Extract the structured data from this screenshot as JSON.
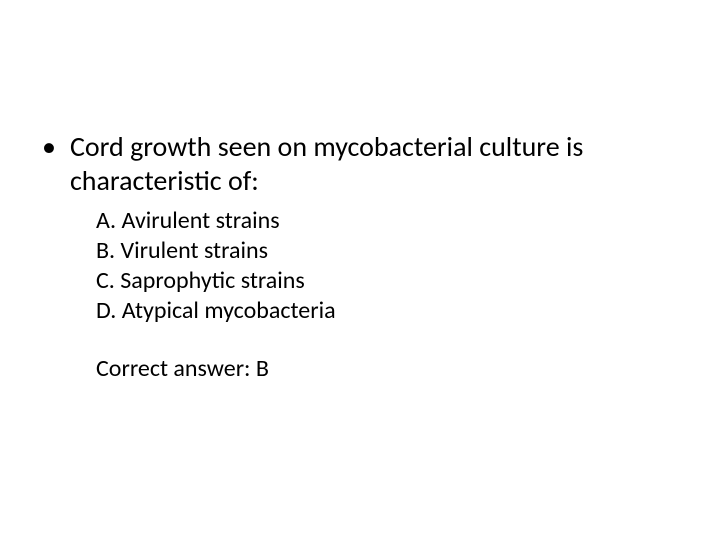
{
  "slide": {
    "background_color": "#ffffff",
    "text_color": "#000000",
    "bullet_char": "•",
    "question": "Cord growth seen on mycobacterial culture is characteristic of:",
    "question_fontsize": 28,
    "options": [
      "A. Avirulent strains",
      "B. Virulent strains",
      "C. Saprophytic strains",
      "D. Atypical mycobacteria"
    ],
    "option_fontsize": 24,
    "answer_label": "Correct answer: B",
    "answer_fontsize": 24
  }
}
